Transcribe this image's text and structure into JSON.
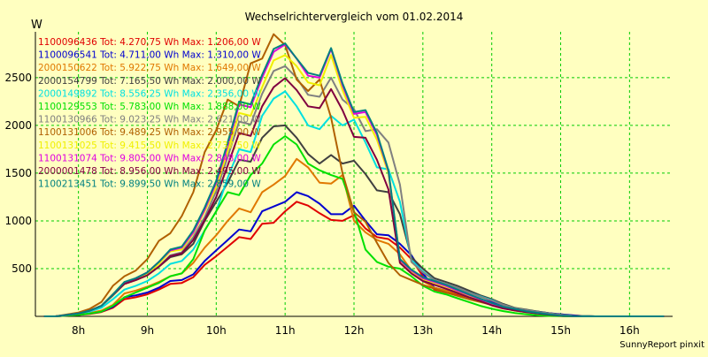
{
  "chart_data": {
    "type": "line",
    "title": "Wechselrichtervergleich vom 01.02.2014",
    "ylabel": "W",
    "footer": "SunnyReport pinxit",
    "x_ticks": [
      "8h",
      "9h",
      "10h",
      "11h",
      "12h",
      "13h",
      "14h",
      "15h",
      "16h"
    ],
    "y_ticks": [
      500,
      1000,
      1500,
      2000,
      2500
    ],
    "xlim": [
      7.375,
      16.625
    ],
    "ylim": [
      0,
      2980
    ],
    "grid": true,
    "grid_color": "#00cc00",
    "background": "#ffffc0",
    "x": [
      7.5,
      7.667,
      7.833,
      8.0,
      8.167,
      8.333,
      8.5,
      8.667,
      8.833,
      9.0,
      9.167,
      9.333,
      9.5,
      9.667,
      9.833,
      10.0,
      10.167,
      10.333,
      10.5,
      10.667,
      10.833,
      11.0,
      11.167,
      11.333,
      11.5,
      11.667,
      11.833,
      12.0,
      12.167,
      12.333,
      12.5,
      12.667,
      12.833,
      13.0,
      13.167,
      13.333,
      13.5,
      13.667,
      13.833,
      14.0,
      14.167,
      14.333,
      14.5,
      14.667,
      14.833,
      15.0,
      15.167,
      15.333,
      15.5,
      15.667,
      15.833,
      16.0,
      16.167,
      16.333,
      16.5
    ],
    "series": [
      {
        "name": "1100096436 Tot: 4.270,75 Wh Max: 1.206,00 W",
        "color": "#e00000",
        "values": [
          0,
          0,
          8,
          15,
          25,
          45,
          90,
          180,
          200,
          230,
          280,
          340,
          350,
          410,
          540,
          630,
          730,
          830,
          810,
          970,
          980,
          1100,
          1200,
          1160,
          1080,
          1010,
          1000,
          1060,
          920,
          830,
          810,
          720,
          600,
          420,
          280,
          250,
          230,
          200,
          170,
          140,
          100,
          70,
          60,
          45,
          30,
          20,
          10,
          3,
          0,
          0,
          0,
          0,
          0,
          0,
          0
        ]
      },
      {
        "name": "1100096541 Tot: 4.711,00 Wh Max: 1.310,00 W",
        "color": "#0000d0",
        "values": [
          0,
          0,
          8,
          15,
          30,
          50,
          100,
          200,
          220,
          250,
          300,
          370,
          380,
          440,
          580,
          690,
          800,
          910,
          890,
          1100,
          1150,
          1200,
          1300,
          1260,
          1180,
          1070,
          1070,
          1160,
          1000,
          860,
          850,
          760,
          640,
          450,
          300,
          270,
          250,
          220,
          180,
          150,
          110,
          80,
          65,
          50,
          33,
          22,
          12,
          4,
          0,
          0,
          0,
          0,
          0,
          0,
          0
        ]
      },
      {
        "name": "2000150622 Tot: 5.922,75 Wh Max: 1.649,00 W",
        "color": "#e07800",
        "values": [
          0,
          0,
          10,
          20,
          35,
          60,
          120,
          240,
          270,
          310,
          360,
          420,
          450,
          560,
          720,
          850,
          1000,
          1130,
          1090,
          1300,
          1380,
          1470,
          1649,
          1560,
          1400,
          1390,
          1480,
          1000,
          880,
          800,
          760,
          650,
          480,
          370,
          300,
          270,
          240,
          200,
          170,
          130,
          90,
          65,
          50,
          35,
          22,
          12,
          5,
          2,
          0,
          0,
          0,
          0,
          0,
          0,
          0
        ]
      },
      {
        "name": "2000154799 Tot: 7.165,50 Wh Max: 2.000,00 W",
        "color": "#404040",
        "values": [
          0,
          0,
          15,
          30,
          60,
          110,
          220,
          340,
          380,
          430,
          520,
          620,
          650,
          760,
          1000,
          1200,
          1400,
          1640,
          1620,
          1870,
          1990,
          2000,
          1870,
          1700,
          1600,
          1690,
          1600,
          1630,
          1490,
          1320,
          1300,
          1070,
          620,
          500,
          400,
          360,
          320,
          270,
          220,
          180,
          130,
          90,
          70,
          50,
          32,
          18,
          6,
          2,
          0,
          0,
          0,
          0,
          0,
          0,
          0
        ]
      },
      {
        "name": "2000149892 Tot: 8.556,25 Wh Max: 2.356,00 W",
        "color": "#00e0e0",
        "values": [
          0,
          0,
          12,
          25,
          50,
          90,
          180,
          280,
          320,
          370,
          450,
          550,
          580,
          700,
          900,
          1100,
          1450,
          1750,
          1720,
          2100,
          2280,
          2356,
          2200,
          2000,
          1960,
          2100,
          2000,
          2060,
          1820,
          1560,
          1540,
          1200,
          590,
          470,
          380,
          340,
          300,
          250,
          210,
          170,
          120,
          85,
          65,
          45,
          30,
          16,
          6,
          2,
          0,
          0,
          0,
          0,
          0,
          0,
          0
        ]
      },
      {
        "name": "1100129553 Tot: 5.783,00 Wh Max: 1.888,00 W",
        "color": "#00e000",
        "values": [
          0,
          0,
          8,
          15,
          30,
          50,
          110,
          200,
          250,
          300,
          350,
          420,
          450,
          600,
          900,
          1100,
          1300,
          1270,
          1480,
          1600,
          1800,
          1888,
          1800,
          1600,
          1530,
          1480,
          1440,
          1100,
          700,
          570,
          520,
          500,
          420,
          320,
          260,
          230,
          190,
          150,
          110,
          80,
          55,
          35,
          22,
          12,
          5,
          2,
          0,
          0,
          0,
          0,
          0,
          0,
          0,
          0,
          0
        ]
      },
      {
        "name": "1100130966 Tot: 9.023,25 Wh Max: 2.621,00 W",
        "color": "#808080",
        "values": [
          0,
          0,
          15,
          30,
          60,
          110,
          230,
          340,
          380,
          430,
          520,
          640,
          670,
          830,
          1040,
          1310,
          1670,
          2040,
          2010,
          2330,
          2570,
          2621,
          2500,
          2320,
          2300,
          2500,
          2270,
          2170,
          1940,
          1960,
          1820,
          1380,
          570,
          460,
          380,
          340,
          300,
          250,
          205,
          165,
          120,
          85,
          65,
          45,
          30,
          16,
          6,
          2,
          0,
          0,
          0,
          0,
          0,
          0,
          0
        ]
      },
      {
        "name": "1100131006 Tot: 9.489,25 Wh Max: 2.955,00 W",
        "color": "#b06000",
        "values": [
          0,
          0,
          20,
          40,
          80,
          150,
          320,
          420,
          480,
          600,
          790,
          870,
          1050,
          1300,
          1720,
          1950,
          2270,
          2200,
          2650,
          2700,
          2955,
          2840,
          2480,
          2360,
          2480,
          2080,
          1500,
          1090,
          990,
          770,
          560,
          430,
          380,
          330,
          290,
          250,
          215,
          180,
          150,
          120,
          85,
          60,
          45,
          32,
          20,
          10,
          3,
          0,
          0,
          0,
          0,
          0,
          0,
          0,
          0
        ]
      },
      {
        "name": "1100131025 Tot: 9.415,50 Wh Max: 2.737,50 W",
        "color": "#f0f000",
        "values": [
          0,
          0,
          15,
          30,
          60,
          110,
          230,
          350,
          390,
          450,
          550,
          680,
          700,
          870,
          1100,
          1350,
          1730,
          2130,
          2100,
          2400,
          2680,
          2737,
          2620,
          2450,
          2420,
          2737,
          2370,
          2080,
          2090,
          1850,
          1500,
          580,
          470,
          390,
          350,
          310,
          260,
          215,
          175,
          130,
          92,
          72,
          50,
          34,
          19,
          7,
          2,
          0,
          0,
          0,
          0,
          0,
          0,
          0,
          0
        ]
      },
      {
        "name": "1100131074 Tot: 9.805,00 Wh Max: 2.848,00 W",
        "color": "#e000e0",
        "values": [
          0,
          0,
          15,
          30,
          60,
          110,
          230,
          350,
          400,
          460,
          570,
          690,
          720,
          880,
          1120,
          1400,
          1790,
          2220,
          2190,
          2500,
          2770,
          2848,
          2700,
          2520,
          2500,
          2800,
          2420,
          2120,
          2140,
          1900,
          1520,
          590,
          480,
          400,
          360,
          320,
          270,
          225,
          180,
          135,
          96,
          75,
          52,
          36,
          20,
          8,
          2,
          0,
          0,
          0,
          0,
          0,
          0,
          0,
          0
        ]
      },
      {
        "name": "2000001478 Tot: 8.956,00 Wh Max: 2.495,00 W",
        "color": "#800040",
        "values": [
          0,
          0,
          15,
          30,
          60,
          110,
          230,
          340,
          380,
          430,
          520,
          630,
          660,
          800,
          1010,
          1250,
          1580,
          1920,
          1890,
          2200,
          2400,
          2495,
          2370,
          2200,
          2180,
          2380,
          2160,
          1880,
          1870,
          1640,
          1330,
          560,
          450,
          370,
          330,
          290,
          245,
          200,
          160,
          115,
          82,
          62,
          44,
          30,
          16,
          6,
          2,
          0,
          0,
          0,
          0,
          0,
          0,
          0,
          0
        ]
      },
      {
        "name": "1100213451 Tot: 9.899,50 Wh Max: 2.859,00 W",
        "color": "#008080",
        "values": [
          0,
          0,
          15,
          30,
          60,
          110,
          230,
          360,
          400,
          460,
          570,
          700,
          730,
          900,
          1140,
          1420,
          1820,
          2250,
          2220,
          2530,
          2800,
          2859,
          2700,
          2550,
          2520,
          2810,
          2440,
          2140,
          2160,
          1920,
          1530,
          600,
          490,
          410,
          370,
          330,
          280,
          230,
          185,
          140,
          100,
          78,
          54,
          37,
          21,
          8,
          2,
          0,
          0,
          0,
          0,
          0,
          0,
          0,
          0
        ]
      }
    ]
  }
}
